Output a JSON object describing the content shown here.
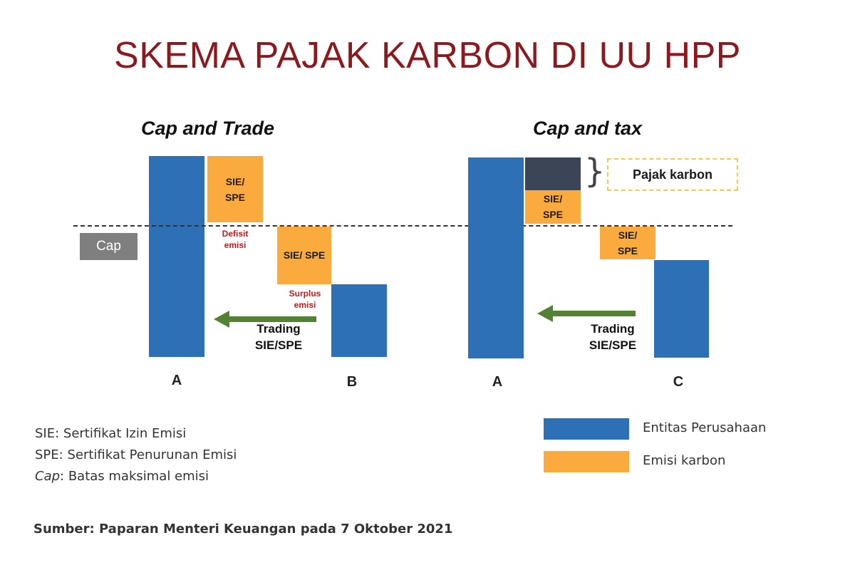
{
  "title": "SKEMA PAJAK KARBON DI UU HPP",
  "left": {
    "heading": "Cap and Trade",
    "cap_label": "Cap",
    "box_a_label_line1": "SIE/",
    "box_a_label_line2": "SPE",
    "deficit_line1": "Defisit",
    "deficit_line2": "emisi",
    "box_b_label": "SIE/ SPE",
    "surplus_line1": "Surplus",
    "surplus_line2": "emisi",
    "trading_line1": "Trading",
    "trading_line2": "SIE/SPE",
    "letter_a": "A",
    "letter_b": "B"
  },
  "right": {
    "heading": "Cap and tax",
    "pajak_label": "Pajak karbon",
    "brace": "}",
    "box_a_label_line1": "SIE/",
    "box_a_label_line2": "SPE",
    "box_c_label_line1": "SIE/",
    "box_c_label_line2": "SPE",
    "trading_line1": "Trading",
    "trading_line2": "SIE/SPE",
    "letter_a": "A",
    "letter_c": "C"
  },
  "glossary": {
    "sie_term": "SIE",
    "sie_def": ": Sertifikat Izin Emisi",
    "spe_term": "SPE",
    "spe_def": ": Sertifikat Penurunan Emisi",
    "cap_term": "Cap",
    "cap_def": ": Batas maksimal emisi"
  },
  "legend": {
    "company": "Entitas Perusahaan",
    "emission": "Emisi karbon",
    "colors": {
      "company": "#2e70b6",
      "emission": "#fbab3d",
      "tax": "#3b4555",
      "arrow": "#548235",
      "title": "#8b1a1f"
    }
  },
  "source": "Sumber: Paparan Menteri Keuangan pada 7 Oktober 2021"
}
